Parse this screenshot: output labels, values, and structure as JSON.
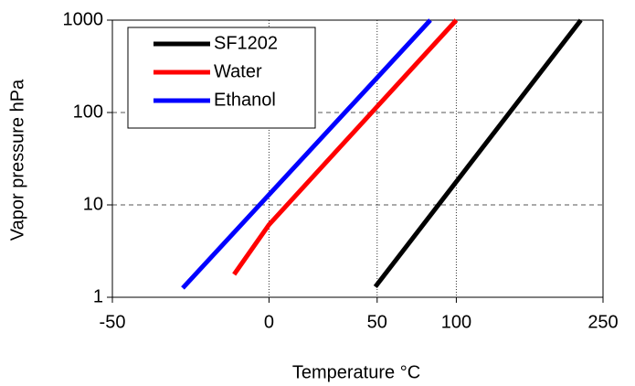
{
  "chart_data": {
    "type": "line",
    "xlabel": "Temperature °C",
    "ylabel": "Vapor pressure hPa",
    "xlim": [
      -50,
      250
    ],
    "xticks": [
      -50,
      0,
      50,
      100,
      250
    ],
    "xscale": "reciprocal-absolute",
    "ylim": [
      1,
      1000
    ],
    "yticks": [
      1,
      10,
      100,
      1000
    ],
    "yscale": "log",
    "grid": true,
    "legend": "upper-left",
    "series": [
      {
        "name": "SF1202",
        "color": "#000000",
        "x": [
          49,
          220
        ],
        "values": [
          1.3,
          1000
        ]
      },
      {
        "name": "Water",
        "color": "#ff0000",
        "x": [
          -13,
          0,
          100
        ],
        "values": [
          1.77,
          6.1,
          1000
        ]
      },
      {
        "name": "Ethanol",
        "color": "#0000ff",
        "x": [
          -30,
          82
        ],
        "values": [
          1.26,
          1000
        ]
      }
    ]
  }
}
